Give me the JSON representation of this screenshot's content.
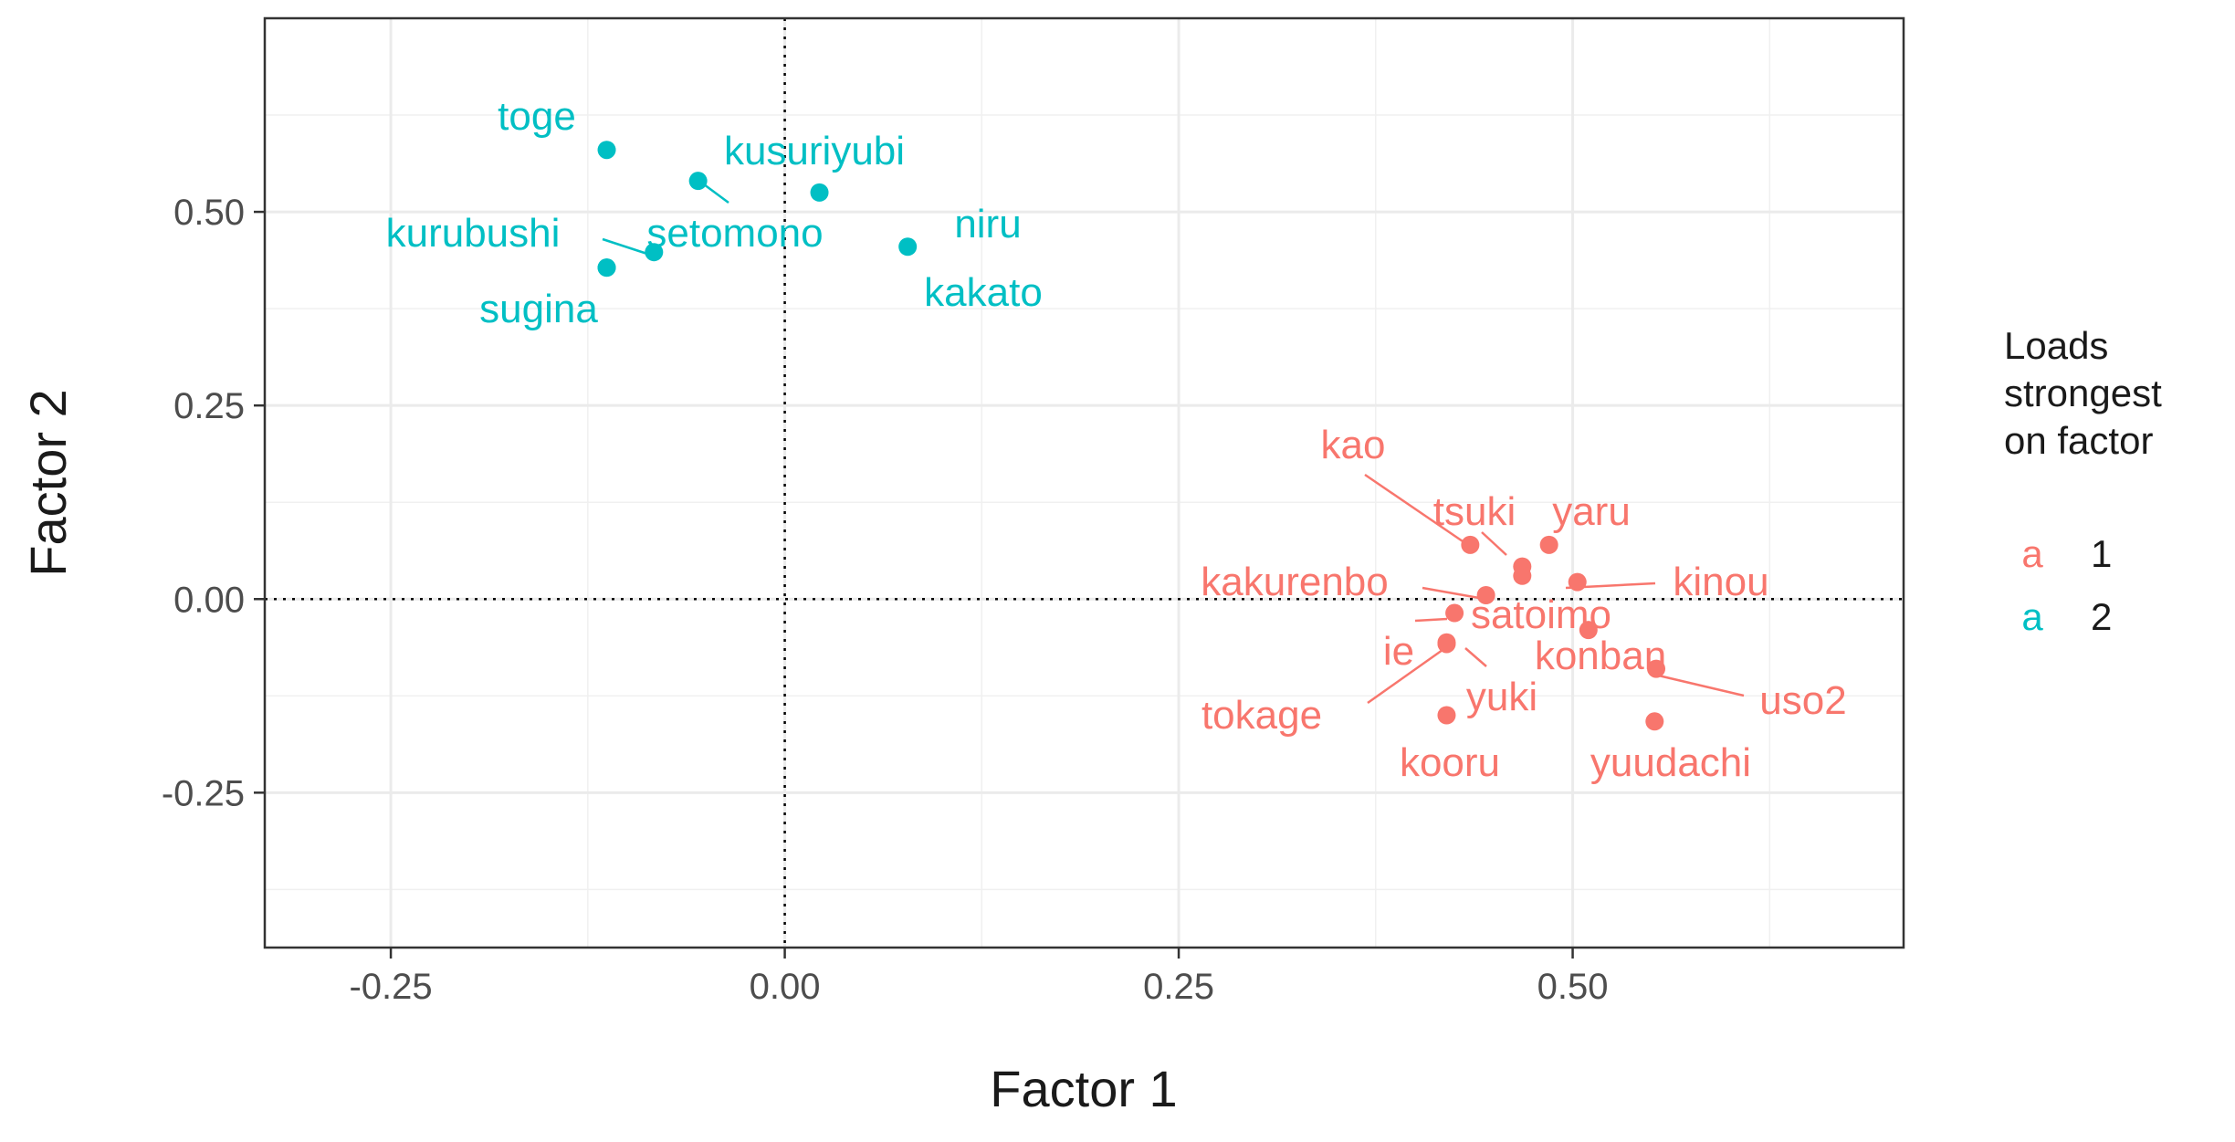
{
  "chart_data": {
    "type": "scatter",
    "title": "",
    "xlabel": "Factor 1",
    "ylabel": "Factor 2",
    "xlim": [
      -0.33,
      0.71
    ],
    "ylim": [
      -0.45,
      0.75
    ],
    "x_ticks": [
      -0.25,
      0.0,
      0.25,
      0.5
    ],
    "x_tick_labels": [
      "-0.25",
      "0.00",
      "0.25",
      "0.50"
    ],
    "y_ticks": [
      -0.25,
      0.0,
      0.25,
      0.5
    ],
    "y_tick_labels": [
      "-0.25",
      "0.00",
      "0.25",
      "0.50"
    ],
    "grid": true,
    "reference_lines": {
      "x": 0,
      "y": 0,
      "style": "dotted"
    },
    "legend": {
      "title": "Loads strongest on factor",
      "title_lines": [
        "Loads",
        "strongest",
        "on factor"
      ],
      "position": "right",
      "key_glyph": "a",
      "entries": [
        {
          "label": "1",
          "color": "#F8766D"
        },
        {
          "label": "2",
          "color": "#00BFC4"
        }
      ]
    },
    "series": [
      {
        "factor": "1",
        "color": "#F8766D",
        "points": [
          {
            "label": "kao",
            "x": 0.435,
            "y": 0.07
          },
          {
            "label": "tsuki",
            "x": 0.468,
            "y": 0.042
          },
          {
            "label": "yaru",
            "x": 0.485,
            "y": 0.07
          },
          {
            "label": "kinou",
            "x": 0.503,
            "y": 0.022
          },
          {
            "label": "kakurenbo",
            "x": 0.445,
            "y": 0.005
          },
          {
            "label": "satoimo",
            "x": 0.425,
            "y": -0.018
          },
          {
            "label": "ie",
            "x": 0.42,
            "y": -0.058
          },
          {
            "label": "tokage",
            "x": 0.42,
            "y": -0.056
          },
          {
            "label": "yuki",
            "x": 0.468,
            "y": 0.03
          },
          {
            "label": "konban",
            "x": 0.51,
            "y": -0.04
          },
          {
            "label": "uso2",
            "x": 0.553,
            "y": -0.09
          },
          {
            "label": "kooru",
            "x": 0.42,
            "y": -0.15
          },
          {
            "label": "yuudachi",
            "x": 0.552,
            "y": -0.158
          }
        ]
      },
      {
        "factor": "2",
        "color": "#00BFC4",
        "points": [
          {
            "label": "toge",
            "x": -0.113,
            "y": 0.58
          },
          {
            "label": "kusuriyubi",
            "x": -0.055,
            "y": 0.54
          },
          {
            "label": "niru",
            "x": 0.022,
            "y": 0.525
          },
          {
            "label": "kurubushi",
            "x": -0.113,
            "y": 0.428
          },
          {
            "label": "setomono",
            "x": -0.083,
            "y": 0.448
          },
          {
            "label": "sugina",
            "x": -0.113,
            "y": 0.428
          },
          {
            "label": "kakato",
            "x": 0.078,
            "y": 0.455
          }
        ]
      }
    ]
  }
}
